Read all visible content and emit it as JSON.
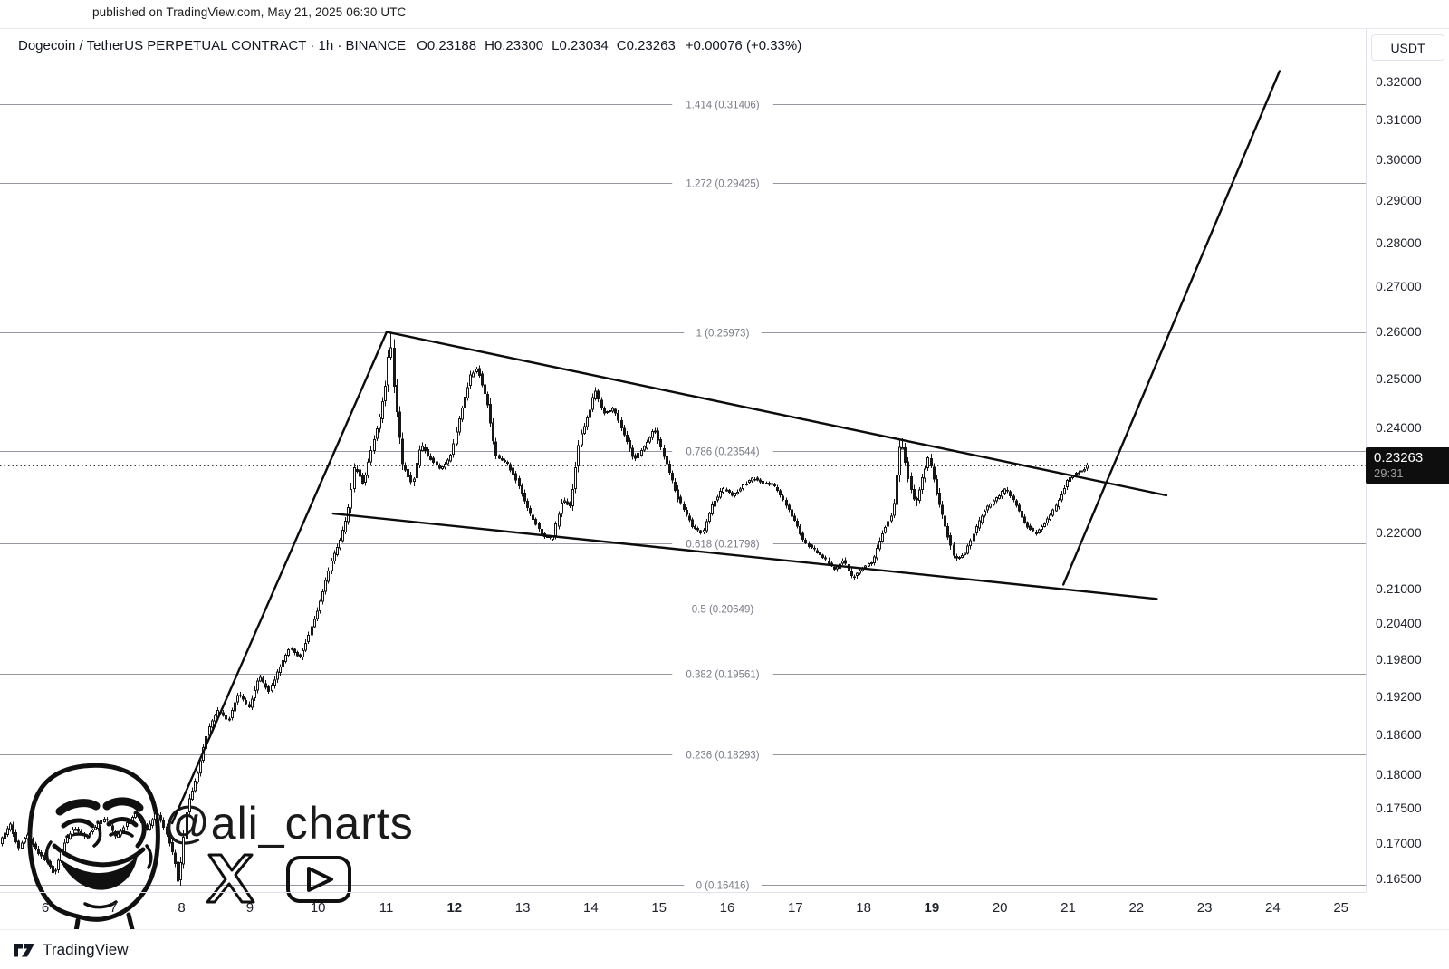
{
  "published_bar": {
    "text": "published on TradingView.com, May 21, 2025 06:30 UTC"
  },
  "header": {
    "title": "Dogecoin / TetherUS PERPETUAL CONTRACT · 1h · BINANCE",
    "ohlc": [
      "O0.23188",
      "H0.23300",
      "L0.23034",
      "C0.23263"
    ],
    "change": "+0.00076 (+0.33%)"
  },
  "price_axis": {
    "currency_button": "USDT",
    "ticks": [
      {
        "label": "0.32000",
        "price": 0.32
      },
      {
        "label": "0.31000",
        "price": 0.31
      },
      {
        "label": "0.30000",
        "price": 0.3
      },
      {
        "label": "0.29000",
        "price": 0.29
      },
      {
        "label": "0.28000",
        "price": 0.28
      },
      {
        "label": "0.27000",
        "price": 0.27
      },
      {
        "label": "0.26000",
        "price": 0.26
      },
      {
        "label": "0.25000",
        "price": 0.25
      },
      {
        "label": "0.24000",
        "price": 0.24
      },
      {
        "label": "0.22000",
        "price": 0.22
      },
      {
        "label": "0.21000",
        "price": 0.21
      },
      {
        "label": "0.20400",
        "price": 0.204
      },
      {
        "label": "0.19800",
        "price": 0.198
      },
      {
        "label": "0.19200",
        "price": 0.192
      },
      {
        "label": "0.18600",
        "price": 0.186
      },
      {
        "label": "0.18000",
        "price": 0.18
      },
      {
        "label": "0.17500",
        "price": 0.175
      },
      {
        "label": "0.17000",
        "price": 0.17
      },
      {
        "label": "0.16500",
        "price": 0.165
      }
    ],
    "price_badge": {
      "price": "0.23263",
      "countdown": "29:31"
    }
  },
  "time_axis": {
    "labels": [
      {
        "text": "6",
        "day": 6,
        "bold": false
      },
      {
        "text": "7",
        "day": 7,
        "bold": false
      },
      {
        "text": "8",
        "day": 8,
        "bold": false
      },
      {
        "text": "9",
        "day": 9,
        "bold": false
      },
      {
        "text": "10",
        "day": 10,
        "bold": false
      },
      {
        "text": "11",
        "day": 11,
        "bold": false
      },
      {
        "text": "12",
        "day": 12,
        "bold": true
      },
      {
        "text": "13",
        "day": 13,
        "bold": false
      },
      {
        "text": "14",
        "day": 14,
        "bold": false
      },
      {
        "text": "15",
        "day": 15,
        "bold": false
      },
      {
        "text": "16",
        "day": 16,
        "bold": false
      },
      {
        "text": "17",
        "day": 17,
        "bold": false
      },
      {
        "text": "18",
        "day": 18,
        "bold": false
      },
      {
        "text": "19",
        "day": 19,
        "bold": true
      },
      {
        "text": "20",
        "day": 20,
        "bold": false
      },
      {
        "text": "21",
        "day": 21,
        "bold": false
      },
      {
        "text": "22",
        "day": 22,
        "bold": false
      },
      {
        "text": "23",
        "day": 23,
        "bold": false
      },
      {
        "text": "24",
        "day": 24,
        "bold": false
      },
      {
        "text": "25",
        "day": 25,
        "bold": false
      }
    ]
  },
  "watermark": {
    "handle": "@ali_charts"
  },
  "branding": {
    "name": "TradingView"
  },
  "colors": {
    "background": "#ffffff",
    "axis_text": "#20222c",
    "border": "#e0e3eb",
    "candle": "#161616",
    "candle_up_fill": "#ffffff",
    "fib_line": "#9598a1",
    "fib_text": "#787b86",
    "trendline": "#0c0c0c",
    "badge_bg": "#0e0e0e",
    "badge_countdown": "#9d9d9d"
  },
  "chart_data": {
    "type": "candlestick",
    "title": "Dogecoin / TetherUS PERPETUAL CONTRACT",
    "exchange": "BINANCE",
    "interval": "1h",
    "quote_currency": "USDT",
    "scale": "log",
    "grid": "fib-levels-only",
    "current_price": 0.23263,
    "ohlc_display": {
      "o": 0.23188,
      "h": 0.233,
      "l": 0.23034,
      "c": 0.23263,
      "change": "+0.00076",
      "change_pct": "+0.33%"
    },
    "visible_price_range": [
      0.162,
      0.325
    ],
    "visible_days_may_2025": [
      5.34,
      25.36
    ],
    "fib_levels": [
      {
        "label": "1.414 (0.31406)",
        "level": 1.414,
        "price": 0.31406
      },
      {
        "label": "1.272 (0.29425)",
        "level": 1.272,
        "price": 0.29425
      },
      {
        "label": "1 (0.25973)",
        "level": 1.0,
        "price": 0.25973
      },
      {
        "label": "0.786 (0.23544)",
        "level": 0.786,
        "price": 0.23544
      },
      {
        "label": "0.618 (0.21798)",
        "level": 0.618,
        "price": 0.21798
      },
      {
        "label": "0.5 (0.20649)",
        "level": 0.5,
        "price": 0.20649
      },
      {
        "label": "0.382 (0.19561)",
        "level": 0.382,
        "price": 0.19561
      },
      {
        "label": "0.236 (0.18293)",
        "level": 0.236,
        "price": 0.18293
      },
      {
        "label": "0 (0.16416)",
        "level": 0.0,
        "price": 0.16416
      }
    ],
    "trendlines": [
      {
        "name": "rally-support-line",
        "from": [
          7.86,
          0.1728
        ],
        "to": [
          11.006,
          0.2599
        ]
      },
      {
        "name": "wedge-upper-resistance",
        "from": [
          11.006,
          0.2599
        ],
        "to": [
          22.44,
          0.2269
        ]
      },
      {
        "name": "wedge-lower-support",
        "from": [
          10.22,
          0.2235
        ],
        "to": [
          22.3,
          0.2082
        ]
      },
      {
        "name": "breakout-projection-line",
        "from": [
          20.93,
          0.2107
        ],
        "to": [
          24.1,
          0.3228
        ]
      }
    ],
    "price_waypoints_day_price": [
      [
        5.34,
        0.17
      ],
      [
        5.5,
        0.1726
      ],
      [
        5.62,
        0.1692
      ],
      [
        5.75,
        0.1712
      ],
      [
        5.9,
        0.1688
      ],
      [
        6.05,
        0.1672
      ],
      [
        6.15,
        0.1656
      ],
      [
        6.3,
        0.1702
      ],
      [
        6.45,
        0.1722
      ],
      [
        6.6,
        0.1708
      ],
      [
        6.75,
        0.1722
      ],
      [
        6.9,
        0.1736
      ],
      [
        7.05,
        0.1708
      ],
      [
        7.2,
        0.1726
      ],
      [
        7.35,
        0.1742
      ],
      [
        7.5,
        0.1718
      ],
      [
        7.65,
        0.1744
      ],
      [
        7.8,
        0.1712
      ],
      [
        7.92,
        0.1672
      ],
      [
        7.97,
        0.1643
      ],
      [
        8.1,
        0.1755
      ],
      [
        8.25,
        0.18
      ],
      [
        8.4,
        0.1868
      ],
      [
        8.55,
        0.1898
      ],
      [
        8.7,
        0.1882
      ],
      [
        8.85,
        0.1926
      ],
      [
        9.0,
        0.1902
      ],
      [
        9.15,
        0.1952
      ],
      [
        9.3,
        0.1928
      ],
      [
        9.45,
        0.1965
      ],
      [
        9.6,
        0.2
      ],
      [
        9.75,
        0.1982
      ],
      [
        9.9,
        0.2028
      ],
      [
        10.05,
        0.2078
      ],
      [
        10.2,
        0.2145
      ],
      [
        10.35,
        0.219
      ],
      [
        10.45,
        0.2235
      ],
      [
        10.55,
        0.2325
      ],
      [
        10.68,
        0.229
      ],
      [
        10.8,
        0.236
      ],
      [
        10.92,
        0.242
      ],
      [
        11.02,
        0.25
      ],
      [
        11.07,
        0.2595
      ],
      [
        11.13,
        0.248
      ],
      [
        11.25,
        0.233
      ],
      [
        11.4,
        0.2288
      ],
      [
        11.52,
        0.2368
      ],
      [
        11.65,
        0.2342
      ],
      [
        11.8,
        0.2318
      ],
      [
        11.95,
        0.234
      ],
      [
        12.1,
        0.2425
      ],
      [
        12.25,
        0.2505
      ],
      [
        12.35,
        0.2522
      ],
      [
        12.5,
        0.2448
      ],
      [
        12.62,
        0.2345
      ],
      [
        12.78,
        0.2332
      ],
      [
        12.95,
        0.2292
      ],
      [
        13.1,
        0.224
      ],
      [
        13.3,
        0.2196
      ],
      [
        13.45,
        0.2188
      ],
      [
        13.6,
        0.2262
      ],
      [
        13.72,
        0.2248
      ],
      [
        13.85,
        0.238
      ],
      [
        13.98,
        0.2425
      ],
      [
        14.08,
        0.2478
      ],
      [
        14.2,
        0.2428
      ],
      [
        14.35,
        0.2438
      ],
      [
        14.5,
        0.2388
      ],
      [
        14.65,
        0.2338
      ],
      [
        14.8,
        0.2362
      ],
      [
        14.95,
        0.2398
      ],
      [
        15.1,
        0.2338
      ],
      [
        15.3,
        0.2262
      ],
      [
        15.5,
        0.2212
      ],
      [
        15.65,
        0.2198
      ],
      [
        15.8,
        0.2252
      ],
      [
        15.95,
        0.2282
      ],
      [
        16.1,
        0.2268
      ],
      [
        16.25,
        0.2288
      ],
      [
        16.4,
        0.2302
      ],
      [
        16.55,
        0.2292
      ],
      [
        16.7,
        0.2288
      ],
      [
        16.85,
        0.2258
      ],
      [
        17.0,
        0.2222
      ],
      [
        17.15,
        0.2182
      ],
      [
        17.3,
        0.2168
      ],
      [
        17.45,
        0.2152
      ],
      [
        17.6,
        0.2132
      ],
      [
        17.72,
        0.2152
      ],
      [
        17.85,
        0.2118
      ],
      [
        18.0,
        0.2136
      ],
      [
        18.15,
        0.2148
      ],
      [
        18.3,
        0.2202
      ],
      [
        18.45,
        0.2238
      ],
      [
        18.56,
        0.238
      ],
      [
        18.68,
        0.2295
      ],
      [
        18.78,
        0.2252
      ],
      [
        18.88,
        0.2302
      ],
      [
        18.97,
        0.2345
      ],
      [
        19.07,
        0.2282
      ],
      [
        19.2,
        0.2215
      ],
      [
        19.35,
        0.2152
      ],
      [
        19.5,
        0.2162
      ],
      [
        19.65,
        0.2205
      ],
      [
        19.8,
        0.2242
      ],
      [
        19.95,
        0.2262
      ],
      [
        20.1,
        0.2282
      ],
      [
        20.25,
        0.2252
      ],
      [
        20.4,
        0.2212
      ],
      [
        20.55,
        0.2198
      ],
      [
        20.7,
        0.2222
      ],
      [
        20.85,
        0.2252
      ],
      [
        21.0,
        0.2295
      ],
      [
        21.12,
        0.2312
      ],
      [
        21.22,
        0.2315
      ],
      [
        21.29,
        0.2326
      ]
    ],
    "candle_generation": {
      "start_day": 5.336,
      "end_day": 21.29,
      "interval_days": 0.0416667,
      "seed": 9,
      "body_jitter": 0.0009,
      "wick_jitter": 0.0016
    }
  }
}
